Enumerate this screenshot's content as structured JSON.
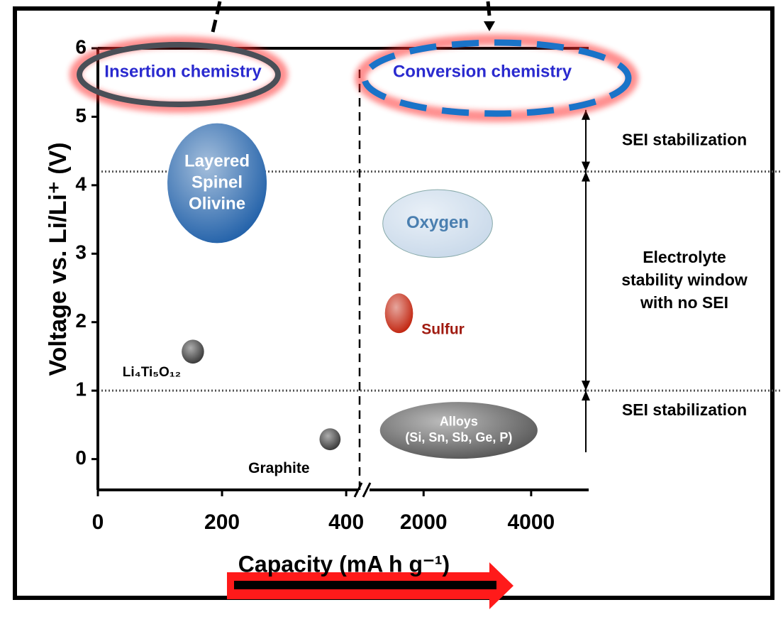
{
  "chart_data": {
    "type": "bubble",
    "y_label": "Voltage vs. Li/Li⁺ (V)",
    "x_label": "Capacity (mA h g⁻¹)",
    "ylim": [
      -0.45,
      6
    ],
    "yticks": [
      0,
      1,
      2,
      3,
      4,
      5,
      6
    ],
    "x_segments": [
      {
        "xlim": [
          0,
          425
        ],
        "xticks": [
          0,
          200,
          400
        ]
      },
      {
        "xlim": [
          915,
          5070
        ],
        "xticks": [
          2000,
          4000
        ]
      }
    ],
    "regions": [
      "Insertion chemistry",
      "Conversion chemistry"
    ],
    "items": [
      {
        "label_lines": [
          "Layered",
          "Spinel",
          "Olivine"
        ],
        "segment": 0,
        "x": 192,
        "y": 4.03,
        "width": 160,
        "height": 1.75,
        "color": "#1f5fa8"
      },
      {
        "label_lines": [
          "Li₄Ti₅O₁₂"
        ],
        "segment": 0,
        "x": 153,
        "y": 1.57,
        "width": 36,
        "height": 0.35,
        "color": "#333333"
      },
      {
        "label_lines": [
          "Graphite"
        ],
        "segment": 0,
        "x": 374,
        "y": 0.29,
        "width": 34,
        "height": 0.32,
        "color": "#333333"
      },
      {
        "label_lines": [
          "Oxygen"
        ],
        "segment": 1,
        "x": 2261,
        "y": 3.44,
        "width": 2040,
        "height": 0.99,
        "color": "#c9d9ea"
      },
      {
        "label_lines": [
          "Sulfur"
        ],
        "segment": 1,
        "x": 1542,
        "y": 2.13,
        "width": 523,
        "height": 0.58,
        "color": "#c0200a"
      },
      {
        "label_lines": [
          "Alloys",
          "(Si, Sn, Sb, Ge, P)"
        ],
        "segment": 1,
        "x": 2654,
        "y": 0.42,
        "width": 2930,
        "height": 0.83,
        "color": "#555555"
      }
    ],
    "thresholds": [
      4.2,
      1.0
    ],
    "arrow_range": [
      0.1,
      5.1
    ],
    "windows": [
      {
        "lines": [
          "SEI stabilization"
        ],
        "y": 4.65
      },
      {
        "lines": [
          "Electrolyte",
          "stability window",
          "with no SEI"
        ],
        "y": 2.6
      },
      {
        "lines": [
          "SEI stabilization"
        ],
        "y": 0.7
      }
    ]
  }
}
